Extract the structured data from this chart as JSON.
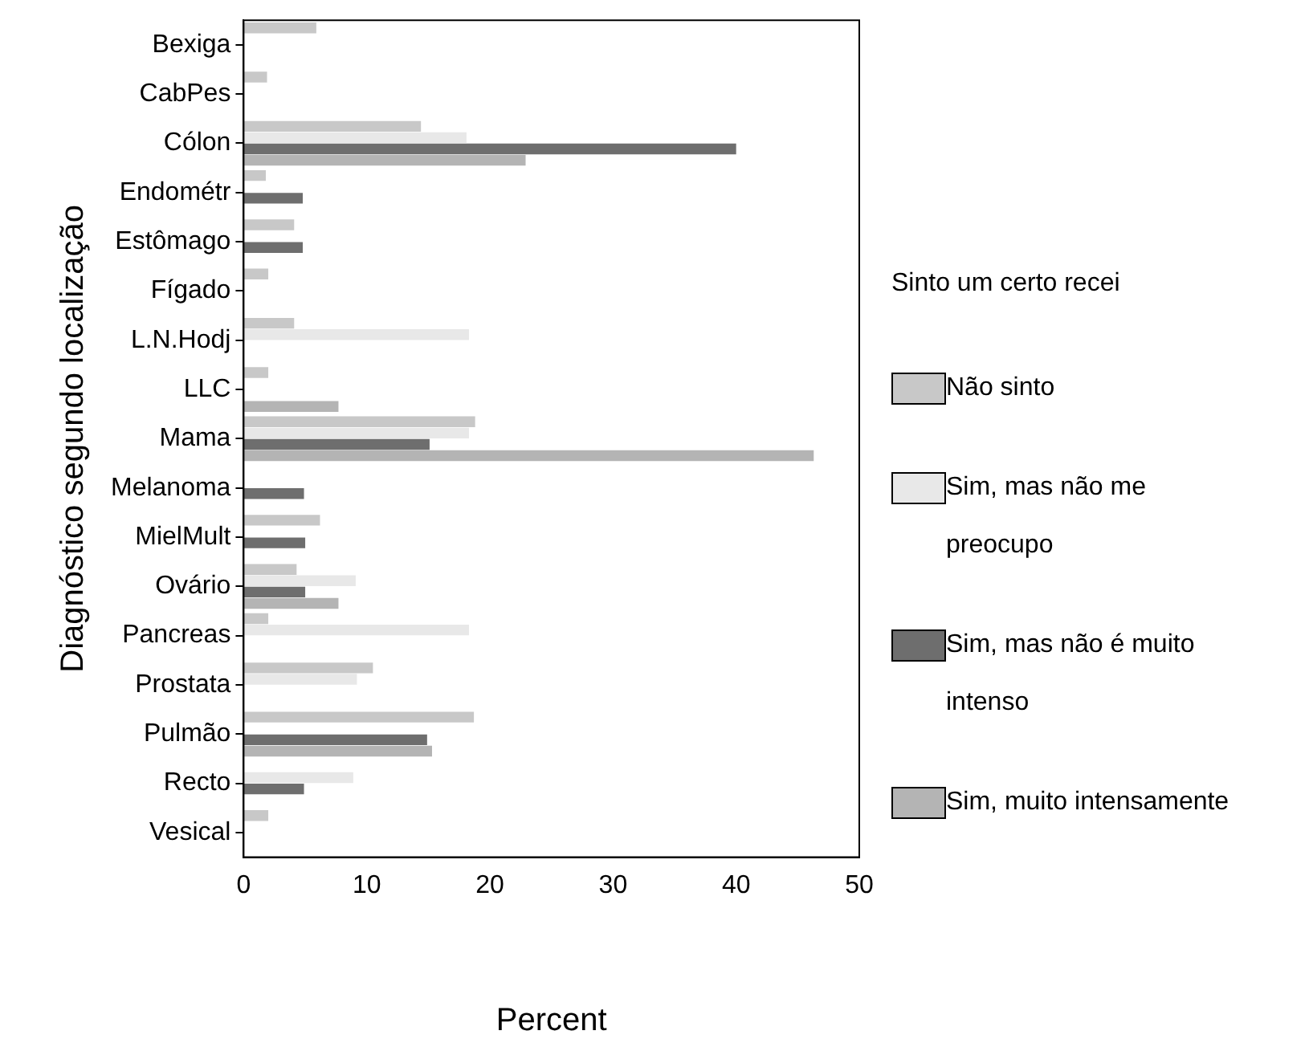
{
  "chart_data": {
    "type": "bar",
    "orientation": "horizontal",
    "xlabel": "Percent",
    "ylabel": "Diagnóstico segundo localização",
    "legend_title": "Sinto um certo recei",
    "legend": "right",
    "grid": false,
    "categories": [
      "Bexiga",
      "CabPes",
      "Cólon",
      "Endométr",
      "Estômago",
      "Fígado",
      "L.N.Hodj",
      "LLC",
      "Mama",
      "Melanoma",
      "MielMult",
      "Ovário",
      "Pancreas",
      "Prostata",
      "Pulmão",
      "Recto",
      "Vesical"
    ],
    "xlim": [
      0,
      50
    ],
    "xticks": [
      0,
      10,
      20,
      30,
      40,
      50
    ],
    "series": [
      {
        "name": "Não sinto",
        "color": "#c8c8c8",
        "values": [
          5.9,
          1.9,
          14.4,
          1.8,
          4.1,
          2.0,
          4.1,
          2.0,
          18.8,
          null,
          6.2,
          4.3,
          2.0,
          10.5,
          18.7,
          null,
          2.0
        ]
      },
      {
        "name": "Sim, mas não me preocupo",
        "color": "#e8e8e8",
        "values": [
          null,
          null,
          18.1,
          null,
          null,
          null,
          18.3,
          null,
          18.3,
          null,
          null,
          9.1,
          18.3,
          9.2,
          null,
          8.9,
          null
        ]
      },
      {
        "name": "Sim, mas não é muito intenso",
        "color": "#6e6e6e",
        "values": [
          null,
          null,
          40.0,
          4.8,
          4.8,
          null,
          null,
          null,
          15.1,
          4.9,
          5.0,
          5.0,
          null,
          null,
          14.9,
          4.9,
          null
        ]
      },
      {
        "name": "Sim, muito intensamente",
        "color": "#b4b4b4",
        "values": [
          null,
          null,
          22.9,
          null,
          null,
          null,
          null,
          7.7,
          46.3,
          null,
          null,
          7.7,
          null,
          null,
          15.3,
          null,
          null
        ]
      }
    ]
  }
}
